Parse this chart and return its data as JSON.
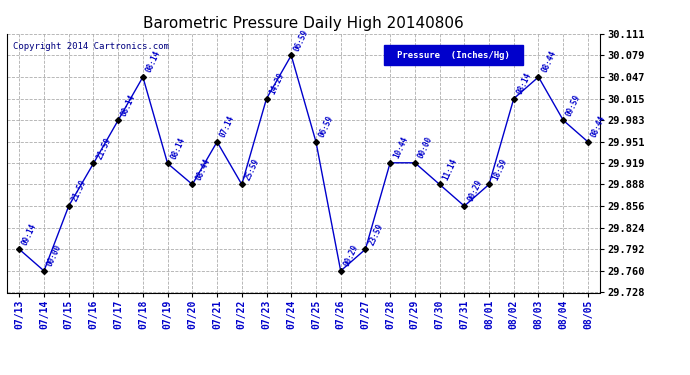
{
  "title": "Barometric Pressure Daily High 20140806",
  "copyright": "Copyright 2014 Cartronics.com",
  "legend_label": "Pressure  (Inches/Hg)",
  "ylim": [
    29.728,
    30.111
  ],
  "yticks": [
    29.728,
    29.76,
    29.792,
    29.824,
    29.856,
    29.888,
    29.919,
    29.951,
    29.983,
    30.015,
    30.047,
    30.079,
    30.111
  ],
  "background_color": "#ffffff",
  "grid_color": "#999999",
  "line_color": "#0000cc",
  "point_color": "#000000",
  "dates": [
    "07/13",
    "07/14",
    "07/15",
    "07/16",
    "07/17",
    "07/18",
    "07/19",
    "07/20",
    "07/21",
    "07/22",
    "07/23",
    "07/24",
    "07/25",
    "07/26",
    "07/27",
    "07/28",
    "07/29",
    "07/30",
    "07/31",
    "08/01",
    "08/02",
    "08/03",
    "08/04",
    "08/05"
  ],
  "values": [
    29.792,
    29.76,
    29.856,
    29.919,
    29.983,
    30.047,
    29.919,
    29.888,
    29.951,
    29.888,
    30.015,
    30.079,
    29.951,
    29.76,
    29.792,
    29.92,
    29.92,
    29.888,
    29.856,
    29.888,
    30.015,
    30.047,
    29.983,
    29.951
  ],
  "times": [
    "09:14",
    "00:00",
    "21:59",
    "21:59",
    "08:14",
    "08:14",
    "08:14",
    "08:44",
    "07:14",
    "25:59",
    "14:29",
    "06:59",
    "06:59",
    "00:29",
    "23:59",
    "10:44",
    "00:00",
    "11:14",
    "00:29",
    "18:59",
    "08:14",
    "08:44",
    "09:59",
    "08:44"
  ]
}
